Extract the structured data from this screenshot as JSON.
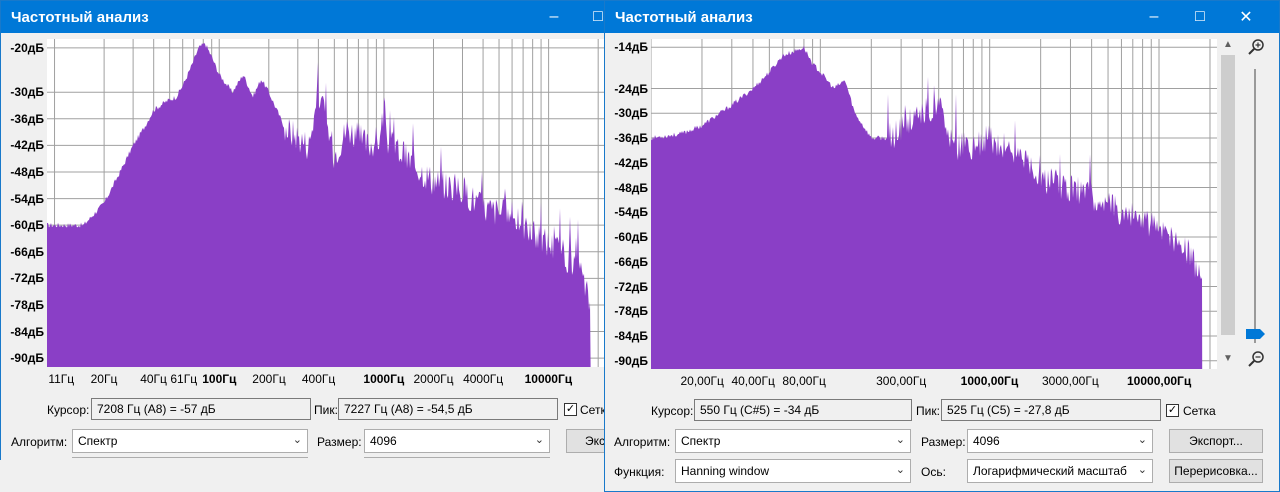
{
  "win1": {
    "title": "Частотный анализ",
    "y_labels": [
      "-20дБ",
      "-30дБ",
      "-36дБ",
      "-42дБ",
      "-48дБ",
      "-54дБ",
      "-60дБ",
      "-66дБ",
      "-72дБ",
      "-78дБ",
      "-84дБ",
      "-90дБ"
    ],
    "x_labels": [
      "11Гц",
      "20Гц",
      "40Гц",
      "61Гц",
      "100Гц",
      "200Гц",
      "400Гц",
      "1000Гц",
      "2000Гц",
      "4000Гц",
      "10000Гц"
    ],
    "cursor_label": "Курсор:",
    "cursor_value": "7208 Гц (A8) = -57 дБ",
    "peak_label": "Пик:",
    "peak_value": "7227 Гц (A8) = -54,5 дБ",
    "grid_label": "Сетка",
    "algorithm_label": "Алгоритм:",
    "algorithm_value": "Спектр",
    "size_label": "Размер:",
    "size_value": "4096",
    "export_label": "Экспор"
  },
  "win2": {
    "title": "Частотный анализ",
    "y_labels": [
      "-14дБ",
      "-24дБ",
      "-30дБ",
      "-36дБ",
      "-42дБ",
      "-48дБ",
      "-54дБ",
      "-60дБ",
      "-66дБ",
      "-72дБ",
      "-78дБ",
      "-84дБ",
      "-90дБ"
    ],
    "x_labels": [
      "20,00Гц",
      "40,00Гц",
      "80,00Гц",
      "300,00Гц",
      "1000,00Гц",
      "3000,00Гц",
      "10000,00Гц"
    ],
    "cursor_label": "Курсор:",
    "cursor_value": "550 Гц (C#5) = -34 дБ",
    "peak_label": "Пик:",
    "peak_value": "525 Гц (C5) = -27,8 дБ",
    "grid_label": "Сетка",
    "algorithm_label": "Алгоритм:",
    "algorithm_value": "Спектр",
    "size_label": "Размер:",
    "size_value": "4096",
    "export_label": "Экспорт...",
    "function_label": "Функция:",
    "function_value": "Hanning window",
    "axis_label": "Ось:",
    "axis_value": "Логарифмический масштаб",
    "replot_label": "Перерисовка..."
  },
  "colors": {
    "spectrum": "#8a3fc6",
    "titlebar": "#0078d7",
    "grid": "#a0a0a0",
    "slider_thumb": "#0078d7"
  },
  "grid_checked": true,
  "chart_data": [
    {
      "type": "area",
      "x_scale": "log",
      "xlim": [
        9,
        22000
      ],
      "ylim": [
        -92,
        -18
      ],
      "x": [
        9,
        15,
        20,
        25,
        30,
        35,
        40,
        48,
        55,
        61,
        68,
        75,
        82,
        90,
        100,
        120,
        140,
        160,
        180,
        200,
        250,
        300,
        350,
        400,
        500,
        600,
        800,
        1000,
        1500,
        2000,
        3000,
        4000,
        5000,
        6000,
        7000,
        8000,
        10000,
        12000,
        14000,
        16000,
        18000
      ],
      "y": [
        -60,
        -60,
        -55,
        -48,
        -42,
        -38,
        -34,
        -32,
        -31,
        -28,
        -24,
        -20,
        -19,
        -22,
        -26,
        -30,
        -26,
        -31,
        -27,
        -30,
        -38,
        -40,
        -42,
        -30,
        -44,
        -38,
        -42,
        -40,
        -46,
        -50,
        -52,
        -56,
        -57,
        -58,
        -60,
        -62,
        -64,
        -66,
        -69,
        -72,
        -78
      ],
      "xlabel": "",
      "ylabel": ""
    },
    {
      "type": "area",
      "x_scale": "log",
      "xlim": [
        10,
        22000
      ],
      "ylim": [
        -92,
        -12
      ],
      "x": [
        10,
        15,
        20,
        30,
        40,
        50,
        60,
        70,
        80,
        90,
        100,
        120,
        140,
        160,
        200,
        250,
        300,
        400,
        500,
        550,
        600,
        800,
        1000,
        1500,
        2000,
        3000,
        4000,
        5000,
        6000,
        8000,
        10000,
        12000,
        14000,
        16000,
        18000
      ],
      "y": [
        -36,
        -35,
        -33,
        -28,
        -24,
        -20,
        -16,
        -15,
        -14,
        -18,
        -20,
        -24,
        -22,
        -30,
        -36,
        -36,
        -34,
        -30,
        -28,
        -34,
        -38,
        -38,
        -36,
        -40,
        -46,
        -48,
        -50,
        -52,
        -54,
        -56,
        -58,
        -60,
        -62,
        -66,
        -70
      ],
      "xlabel": "",
      "ylabel": ""
    }
  ]
}
